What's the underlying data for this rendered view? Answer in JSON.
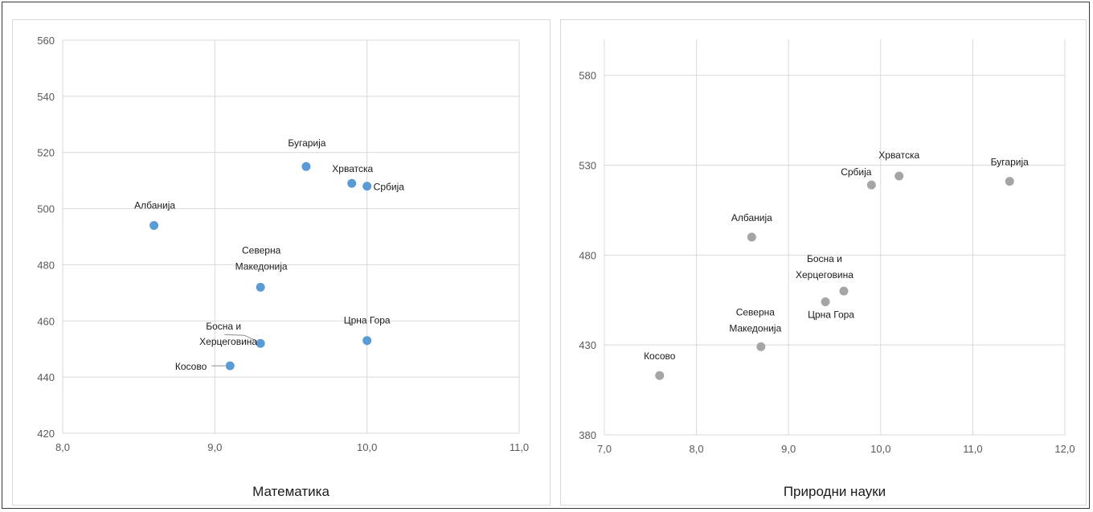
{
  "chart_data": [
    {
      "type": "scatter",
      "xlabel": "Математика",
      "ylabel": "",
      "xlim": [
        8.0,
        11.0
      ],
      "ylim": [
        420,
        560
      ],
      "xticks": [
        "8,0",
        "9,0",
        "10,0",
        "11,0"
      ],
      "yticks": [
        "420",
        "440",
        "460",
        "480",
        "500",
        "520",
        "540",
        "560"
      ],
      "grid": true,
      "marker_color": "#5b9bd5",
      "points": [
        {
          "label": "Бугарија",
          "x": 9.6,
          "y": 515
        },
        {
          "label": "Хрватска",
          "x": 9.9,
          "y": 509
        },
        {
          "label": "Србија",
          "x": 10.0,
          "y": 508
        },
        {
          "label": "Албанија",
          "x": 8.6,
          "y": 494
        },
        {
          "label": "Северна Македонија",
          "x": 9.3,
          "y": 472
        },
        {
          "label": "Црна Гора",
          "x": 10.0,
          "y": 453
        },
        {
          "label": "Босна и Херцеговина",
          "x": 9.3,
          "y": 452
        },
        {
          "label": "Косово",
          "x": 9.1,
          "y": 444
        }
      ]
    },
    {
      "type": "scatter",
      "xlabel": "Природни науки",
      "ylabel": "",
      "xlim": [
        7.0,
        12.0
      ],
      "ylim": [
        380,
        600
      ],
      "xticks": [
        "7,0",
        "8,0",
        "9,0",
        "10,0",
        "11,0",
        "12,0"
      ],
      "yticks": [
        "380",
        "430",
        "480",
        "530",
        "580"
      ],
      "grid": true,
      "marker_color": "#a5a5a5",
      "points": [
        {
          "label": "Хрватска",
          "x": 10.2,
          "y": 524
        },
        {
          "label": "Бугарија",
          "x": 11.4,
          "y": 521
        },
        {
          "label": "Србија",
          "x": 9.9,
          "y": 519
        },
        {
          "label": "Албанија",
          "x": 8.6,
          "y": 490
        },
        {
          "label": "Босна и Херцеговина",
          "x": 9.6,
          "y": 460
        },
        {
          "label": "Црна Гора",
          "x": 9.4,
          "y": 454
        },
        {
          "label": "Северна Македонија",
          "x": 8.7,
          "y": 429
        },
        {
          "label": "Косово",
          "x": 7.6,
          "y": 413
        }
      ]
    }
  ]
}
